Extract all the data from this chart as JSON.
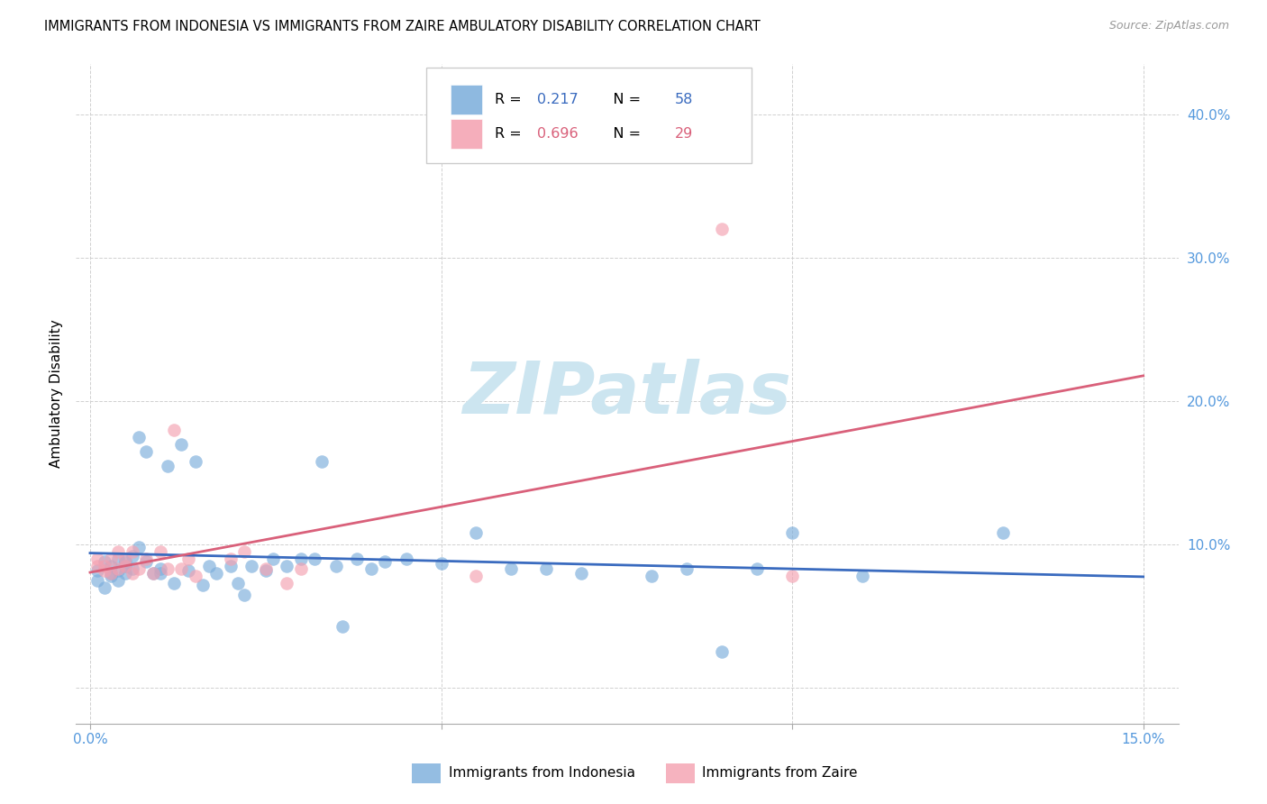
{
  "title": "IMMIGRANTS FROM INDONESIA VS IMMIGRANTS FROM ZAIRE AMBULATORY DISABILITY CORRELATION CHART",
  "source": "Source: ZipAtlas.com",
  "ylabel": "Ambulatory Disability",
  "blue_color": "#7aaddb",
  "pink_color": "#f4a0b0",
  "blue_line_color": "#3a6bbf",
  "pink_line_color": "#d9607a",
  "watermark_color": "#cce5f0",
  "tick_color": "#5599dd",
  "indonesia_x": [
    0.001,
    0.001,
    0.002,
    0.002,
    0.003,
    0.003,
    0.003,
    0.004,
    0.004,
    0.004,
    0.005,
    0.005,
    0.005,
    0.006,
    0.006,
    0.007,
    0.007,
    0.008,
    0.008,
    0.009,
    0.01,
    0.01,
    0.011,
    0.012,
    0.013,
    0.014,
    0.015,
    0.016,
    0.017,
    0.018,
    0.02,
    0.021,
    0.022,
    0.023,
    0.025,
    0.026,
    0.028,
    0.03,
    0.032,
    0.033,
    0.035,
    0.036,
    0.038,
    0.04,
    0.042,
    0.045,
    0.05,
    0.055,
    0.06,
    0.065,
    0.07,
    0.08,
    0.085,
    0.09,
    0.095,
    0.1,
    0.11,
    0.13
  ],
  "indonesia_y": [
    0.082,
    0.075,
    0.088,
    0.07,
    0.08,
    0.085,
    0.078,
    0.082,
    0.09,
    0.075,
    0.085,
    0.088,
    0.08,
    0.092,
    0.083,
    0.098,
    0.175,
    0.088,
    0.165,
    0.08,
    0.083,
    0.08,
    0.155,
    0.073,
    0.17,
    0.082,
    0.158,
    0.072,
    0.085,
    0.08,
    0.085,
    0.073,
    0.065,
    0.085,
    0.082,
    0.09,
    0.085,
    0.09,
    0.09,
    0.158,
    0.085,
    0.043,
    0.09,
    0.083,
    0.088,
    0.09,
    0.087,
    0.108,
    0.083,
    0.083,
    0.08,
    0.078,
    0.083,
    0.025,
    0.083,
    0.108,
    0.078,
    0.108
  ],
  "zaire_x": [
    0.001,
    0.001,
    0.002,
    0.002,
    0.003,
    0.003,
    0.004,
    0.004,
    0.005,
    0.005,
    0.006,
    0.006,
    0.007,
    0.008,
    0.009,
    0.01,
    0.011,
    0.012,
    0.013,
    0.014,
    0.015,
    0.02,
    0.022,
    0.025,
    0.028,
    0.03,
    0.055,
    0.09,
    0.1
  ],
  "zaire_y": [
    0.085,
    0.09,
    0.082,
    0.085,
    0.09,
    0.08,
    0.095,
    0.083,
    0.085,
    0.09,
    0.08,
    0.095,
    0.083,
    0.09,
    0.08,
    0.095,
    0.083,
    0.18,
    0.083,
    0.09,
    0.078,
    0.09,
    0.095,
    0.083,
    0.073,
    0.083,
    0.078,
    0.32,
    0.078
  ],
  "legend_R1": "0.217",
  "legend_N1": "58",
  "legend_R2": "0.696",
  "legend_N2": "29",
  "xlim": [
    -0.002,
    0.155
  ],
  "ylim": [
    -0.025,
    0.435
  ],
  "yticks": [
    0.0,
    0.1,
    0.2,
    0.3,
    0.4
  ],
  "ytick_labels": [
    "",
    "10.0%",
    "20.0%",
    "30.0%",
    "40.0%"
  ],
  "xticks": [
    0.0,
    0.05,
    0.1,
    0.15
  ],
  "xtick_labels": [
    "0.0%",
    "",
    "",
    "15.0%"
  ]
}
